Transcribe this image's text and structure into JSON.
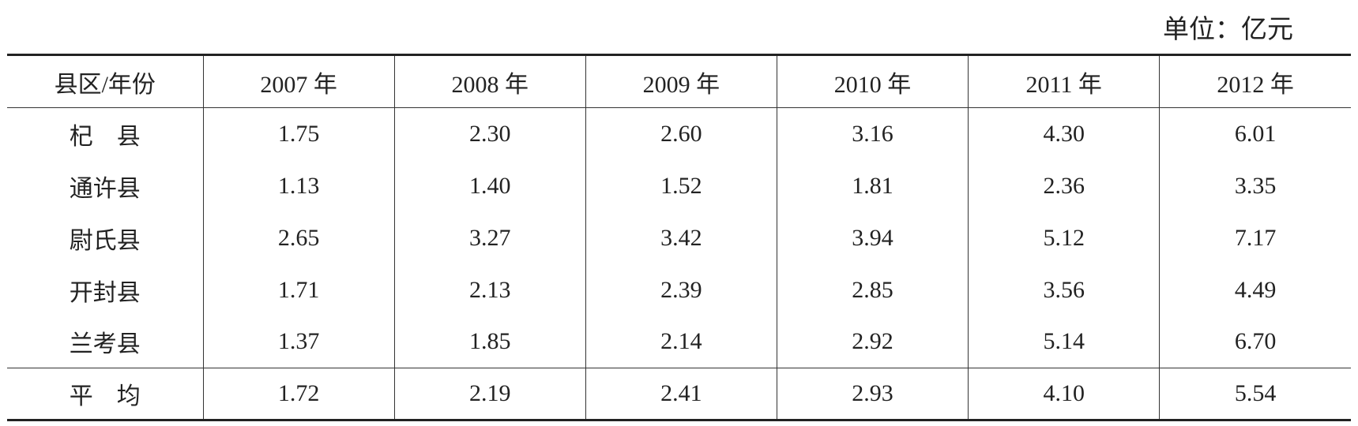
{
  "unit": "单位：亿元",
  "table": {
    "header": [
      "县区/年份",
      "2007 年",
      "2008 年",
      "2009 年",
      "2010 年",
      "2011 年",
      "2012 年"
    ],
    "rows": [
      [
        "杞　县",
        "1.75",
        "2.30",
        "2.60",
        "3.16",
        "4.30",
        "6.01"
      ],
      [
        "通许县",
        "1.13",
        "1.40",
        "1.52",
        "1.81",
        "2.36",
        "3.35"
      ],
      [
        "尉氏县",
        "2.65",
        "3.27",
        "3.42",
        "3.94",
        "5.12",
        "7.17"
      ],
      [
        "开封县",
        "1.71",
        "2.13",
        "2.39",
        "2.85",
        "3.56",
        "4.49"
      ],
      [
        "兰考县",
        "1.37",
        "1.85",
        "2.14",
        "2.92",
        "5.14",
        "6.70"
      ]
    ],
    "footer": [
      "平　均",
      "1.72",
      "2.19",
      "2.41",
      "2.93",
      "4.10",
      "5.54"
    ]
  }
}
